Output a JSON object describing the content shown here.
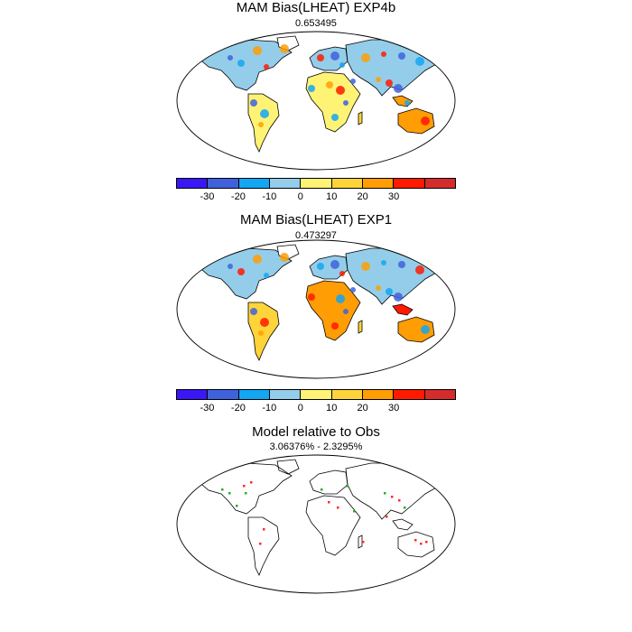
{
  "panels": [
    {
      "title": "MAM Bias(LHEAT) EXP4b",
      "subtitle": "0.653495",
      "style": "exp4b"
    },
    {
      "title": "MAM Bias(LHEAT) EXP1",
      "subtitle": "0.473297",
      "style": "exp1"
    },
    {
      "title": "Model relative to Obs",
      "subtitle": "3.06376% - 2.3295%",
      "style": "relative"
    }
  ],
  "colorbar": {
    "colors": [
      "#3a17f5",
      "#3f62dc",
      "#13a6f2",
      "#93cdea",
      "#fff376",
      "#ffd43a",
      "#ff9d04",
      "#ff1a00",
      "#d42c2c"
    ],
    "tick_labels": [
      "-30",
      "-20",
      "-10",
      "0",
      "10",
      "20",
      "30"
    ]
  },
  "relative_colors": {
    "positive": "#ff2a2a",
    "negative": "#22b022"
  }
}
